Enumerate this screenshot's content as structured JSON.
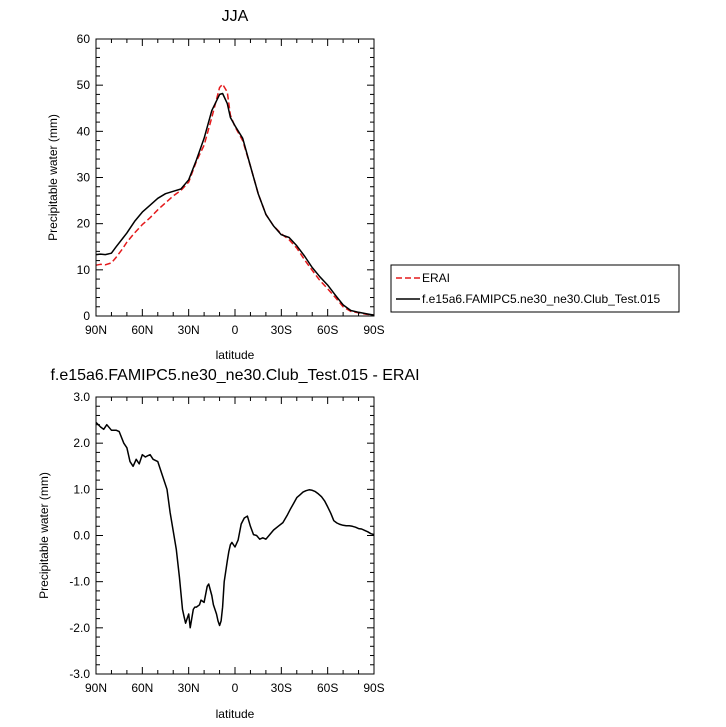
{
  "chart_data": [
    {
      "type": "line",
      "title": "JJA",
      "xlabel": "latitude",
      "ylabel": "Precipitable water (mm)",
      "xlim": [
        90,
        -90
      ],
      "ylim": [
        0,
        60
      ],
      "xticks": [
        90,
        60,
        30,
        0,
        -30,
        -60,
        -90
      ],
      "xtick_labels": [
        "90N",
        "60N",
        "30N",
        "0",
        "30S",
        "60S",
        "90S"
      ],
      "yticks": [
        0,
        10,
        20,
        30,
        40,
        50,
        60
      ],
      "ytick_labels": [
        "0",
        "10",
        "20",
        "30",
        "40",
        "50",
        "60"
      ],
      "grid": false,
      "legend": "right",
      "series": [
        {
          "name": "ERAI",
          "color": "#e41a1c",
          "dash": "dashed",
          "x": [
            90,
            87,
            84,
            80,
            77,
            73,
            70,
            65,
            60,
            55,
            50,
            45,
            40,
            35,
            30,
            25,
            20,
            15,
            10,
            8,
            5,
            3,
            0,
            -5,
            -10,
            -15,
            -20,
            -25,
            -30,
            -35,
            -40,
            -45,
            -50,
            -55,
            -60,
            -65,
            -70,
            -75,
            -80,
            -85,
            -90
          ],
          "y": [
            11.0,
            11.2,
            11.1,
            11.5,
            12.7,
            14.5,
            16.0,
            18.0,
            19.8,
            21.3,
            23.0,
            24.5,
            26.0,
            27.2,
            29.0,
            33.5,
            37.0,
            43.0,
            49.5,
            50.2,
            48.5,
            43.5,
            41.0,
            38.0,
            32.5,
            26.5,
            22.0,
            19.5,
            17.8,
            16.5,
            14.7,
            12.2,
            9.9,
            7.7,
            5.9,
            4.0,
            2.0,
            1.0,
            0.7,
            0.4,
            0.2
          ]
        },
        {
          "name": "f.e15a6.FAMIPC5.ne30_ne30.Club_Test.015",
          "color": "#000000",
          "dash": "solid",
          "x": [
            90,
            87,
            84,
            80,
            77,
            73,
            70,
            65,
            60,
            55,
            50,
            45,
            40,
            35,
            30,
            25,
            20,
            15,
            10,
            8,
            5,
            3,
            0,
            -5,
            -10,
            -15,
            -20,
            -25,
            -30,
            -35,
            -40,
            -45,
            -50,
            -55,
            -60,
            -65,
            -70,
            -75,
            -80,
            -85,
            -90
          ],
          "y": [
            13.3,
            13.4,
            13.3,
            13.6,
            15.0,
            16.7,
            18.0,
            20.5,
            22.5,
            24.0,
            25.5,
            26.5,
            27.0,
            27.5,
            29.5,
            33.8,
            38.5,
            44.5,
            48.0,
            48.2,
            46.0,
            43.0,
            41.2,
            38.5,
            32.5,
            26.5,
            22.0,
            19.5,
            17.6,
            17.0,
            15.2,
            13.0,
            10.5,
            8.5,
            6.7,
            4.5,
            2.4,
            1.2,
            0.8,
            0.5,
            0.2
          ]
        }
      ]
    },
    {
      "type": "line",
      "title": "f.e15a6.FAMIPC5.ne30_ne30.Club_Test.015 - ERAI",
      "xlabel": "latitude",
      "ylabel": "Precipitable water (mm)",
      "xlim": [
        90,
        -90
      ],
      "ylim": [
        -3.0,
        3.0
      ],
      "xticks": [
        90,
        60,
        30,
        0,
        -30,
        -60,
        -90
      ],
      "xtick_labels": [
        "90N",
        "60N",
        "30N",
        "0",
        "30S",
        "60S",
        "90S"
      ],
      "yticks": [
        -3.0,
        -2.0,
        -1.0,
        0.0,
        1.0,
        2.0,
        3.0
      ],
      "ytick_labels": [
        "-3.0",
        "-2.0",
        "-1.0",
        "0.0",
        "1.0",
        "2.0",
        "3.0"
      ],
      "grid": false,
      "series": [
        {
          "color": "#000000",
          "dash": "solid",
          "x": [
            90,
            87,
            85,
            83,
            80,
            77,
            75,
            72,
            70,
            68,
            66,
            64,
            62,
            60,
            58,
            57,
            55,
            53,
            50,
            47,
            44,
            42,
            40,
            38,
            36,
            34,
            33,
            32,
            31,
            30,
            29,
            27,
            26,
            25,
            23,
            22,
            20,
            18,
            17,
            15,
            14,
            12,
            11,
            10,
            9,
            8,
            7,
            5,
            4,
            3,
            2,
            0,
            -2,
            -4,
            -6,
            -8,
            -10,
            -12,
            -14,
            -16,
            -18,
            -20,
            -22,
            -25,
            -28,
            -31,
            -34,
            -36,
            -38,
            -40,
            -42,
            -44,
            -46,
            -48,
            -50,
            -52,
            -54,
            -56,
            -58,
            -60,
            -62,
            -64,
            -66,
            -68,
            -70,
            -72,
            -74,
            -76,
            -78,
            -80,
            -82,
            -84,
            -86,
            -88,
            -90
          ],
          "y": [
            2.45,
            2.35,
            2.3,
            2.4,
            2.28,
            2.28,
            2.25,
            2.0,
            1.9,
            1.6,
            1.5,
            1.65,
            1.55,
            1.75,
            1.7,
            1.72,
            1.75,
            1.65,
            1.6,
            1.3,
            1.0,
            0.5,
            0.1,
            -0.3,
            -0.9,
            -1.6,
            -1.75,
            -1.9,
            -1.8,
            -1.7,
            -2.0,
            -1.6,
            -1.55,
            -1.55,
            -1.5,
            -1.4,
            -1.45,
            -1.1,
            -1.05,
            -1.3,
            -1.5,
            -1.7,
            -1.85,
            -1.95,
            -1.85,
            -1.55,
            -1.0,
            -0.55,
            -0.35,
            -0.2,
            -0.15,
            -0.25,
            -0.1,
            0.25,
            0.38,
            0.42,
            0.2,
            0.02,
            0.0,
            -0.08,
            -0.05,
            -0.08,
            0.0,
            0.12,
            0.2,
            0.28,
            0.45,
            0.58,
            0.7,
            0.82,
            0.88,
            0.94,
            0.97,
            0.99,
            0.98,
            0.95,
            0.9,
            0.84,
            0.75,
            0.62,
            0.48,
            0.32,
            0.27,
            0.24,
            0.22,
            0.21,
            0.21,
            0.2,
            0.18,
            0.15,
            0.14,
            0.11,
            0.08,
            0.04,
            0.02
          ]
        }
      ]
    }
  ]
}
